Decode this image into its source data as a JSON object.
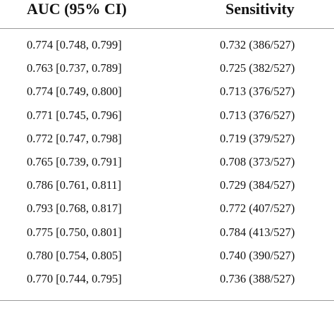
{
  "table": {
    "headers": [
      "AUC (95% CI)",
      "Sensitivity"
    ],
    "rows": [
      [
        "0.774 [0.748, 0.799]",
        "0.732 (386/527)"
      ],
      [
        "0.763 [0.737, 0.789]",
        "0.725 (382/527)"
      ],
      [
        "0.774 [0.749, 0.800]",
        "0.713 (376/527)"
      ],
      [
        "0.771 [0.745, 0.796]",
        "0.713 (376/527)"
      ],
      [
        "0.772 [0.747, 0.798]",
        "0.719 (379/527)"
      ],
      [
        "0.765 [0.739, 0.791]",
        "0.708 (373/527)"
      ],
      [
        "0.786 [0.761, 0.811]",
        "0.729 (384/527)"
      ],
      [
        "0.793 [0.768, 0.817]",
        "0.772 (407/527)"
      ],
      [
        "0.775 [0.750, 0.801]",
        "0.784 (413/527)"
      ],
      [
        "0.780 [0.754, 0.805]",
        "0.740 (390/527)"
      ],
      [
        "0.770 [0.744, 0.795]",
        "0.736 (388/527)"
      ]
    ]
  }
}
